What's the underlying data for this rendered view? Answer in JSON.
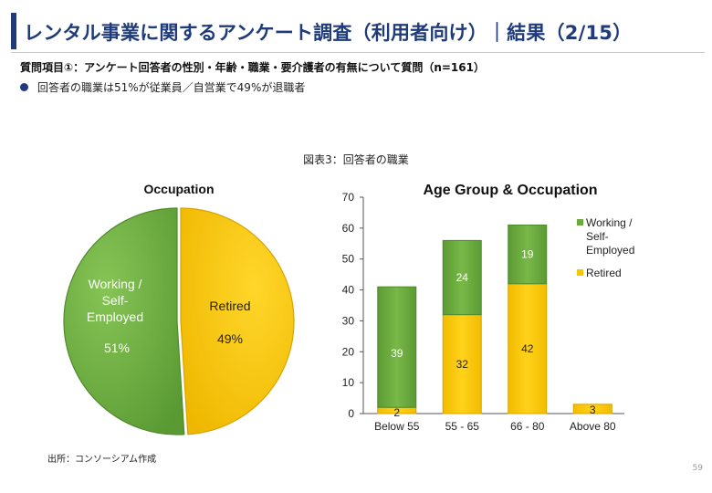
{
  "header": {
    "title": "レンタル事業に関するアンケート調査（利用者向け）｜結果（2/15）"
  },
  "question": {
    "text": "質問項目①：アンケート回答者の性別・年齢・職業・要介護者の有無について質問（n=161）"
  },
  "bullets": [
    "回答者の職業は51%が従業員／自営業で49%が退職者"
  ],
  "figure": {
    "caption": "図表3：回答者の職業"
  },
  "colors": {
    "title": "#1f3b7a",
    "working": "#6aab3e",
    "retired": "#f7c600"
  },
  "chart_data": [
    {
      "type": "pie",
      "title": "Occupation",
      "slices": [
        {
          "label": "Working / Self-Employed",
          "label_lines": [
            "Working /",
            "Self-",
            "Employed"
          ],
          "value": 51,
          "display": "51%"
        },
        {
          "label": "Retired",
          "label_lines": [
            "Retired"
          ],
          "value": 49,
          "display": "49%"
        }
      ]
    },
    {
      "type": "bar",
      "stacked": true,
      "title": "Age Group & Occupation",
      "categories": [
        "Below 55",
        "55 - 65",
        "66 - 80",
        "Above 80"
      ],
      "series": [
        {
          "name": "Retired",
          "values": [
            2,
            32,
            42,
            3
          ]
        },
        {
          "name": "Working / Self-Employed",
          "values": [
            39,
            24,
            19,
            0
          ]
        }
      ],
      "ylim": [
        0,
        70
      ],
      "yticks": [
        0,
        10,
        20,
        30,
        40,
        50,
        60,
        70
      ],
      "legend": {
        "position": "right",
        "items": [
          {
            "name": "Working / Self-Employed",
            "lines": [
              "Working /",
              "Self-",
              "Employed"
            ]
          },
          {
            "name": "Retired",
            "lines": [
              "Retired"
            ]
          }
        ]
      }
    }
  ],
  "footer": {
    "source": "出所：コンソーシアム作成",
    "page": "59"
  }
}
